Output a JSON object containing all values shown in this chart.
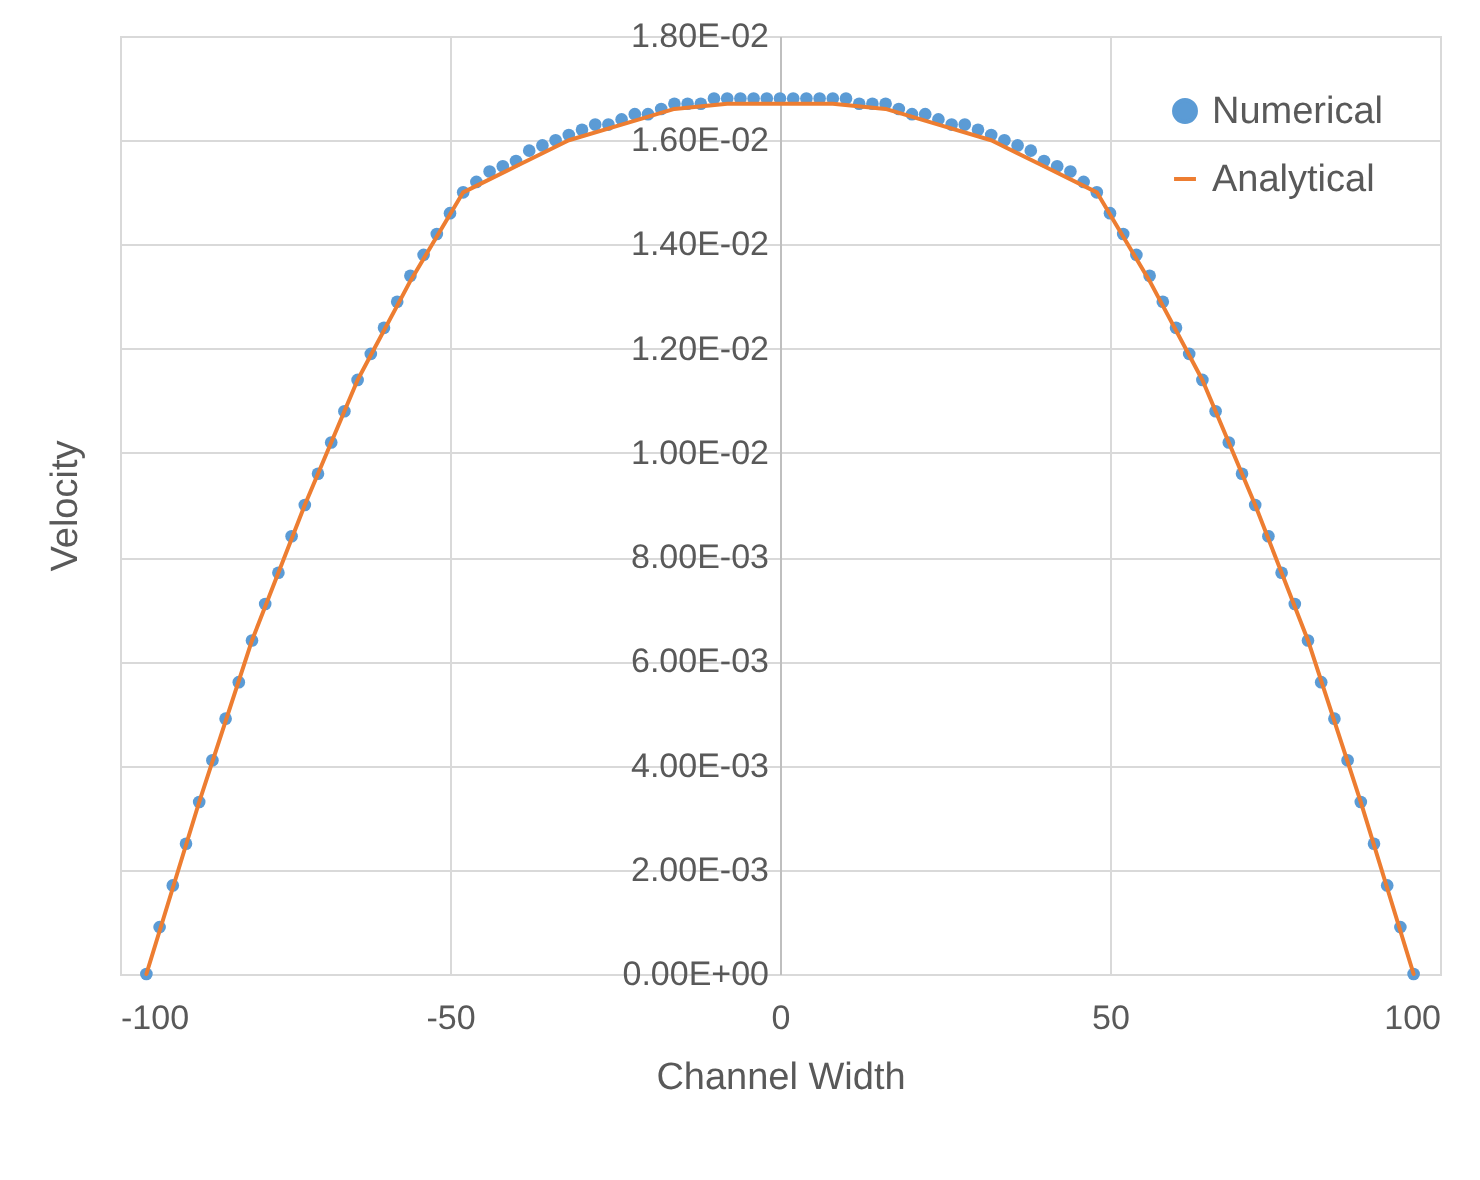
{
  "chart_data": {
    "type": "scatter",
    "xlabel": "Channel Width",
    "ylabel": "Velocity",
    "xlim": [
      -100,
      100
    ],
    "xticks": [
      -100,
      -50,
      0,
      50,
      100
    ],
    "ylim": [
      0,
      0.018
    ],
    "yticks": [
      {
        "value": 0,
        "label": "0.00E+00"
      },
      {
        "value": 0.002,
        "label": "2.00E-03"
      },
      {
        "value": 0.004,
        "label": "4.00E-03"
      },
      {
        "value": 0.006,
        "label": "6.00E-03"
      },
      {
        "value": 0.008,
        "label": "8.00E-03"
      },
      {
        "value": 0.01,
        "label": "1.00E-02"
      },
      {
        "value": 0.012,
        "label": "1.20E-02"
      },
      {
        "value": 0.014,
        "label": "1.40E-02"
      },
      {
        "value": 0.016,
        "label": "1.60E-02"
      },
      {
        "value": 0.018,
        "label": "1.80E-02"
      }
    ],
    "grid": true,
    "legend": "top right",
    "series": [
      {
        "name": "Numerical",
        "marker": "circle",
        "color": "#5b9bd5",
        "x": [
          -96,
          -94,
          -92,
          -90,
          -88,
          -86,
          -84,
          -82,
          -80,
          -78,
          -76,
          -74,
          -72,
          -70,
          -68,
          -66,
          -64,
          -62,
          -60,
          -58,
          -56,
          -54,
          -52,
          -50,
          -48,
          -46,
          -44,
          -42,
          -40,
          -38,
          -36,
          -34,
          -32,
          -30,
          -28,
          -26,
          -24,
          -22,
          -20,
          -18,
          -16,
          -14,
          -12,
          -10,
          -8,
          -6,
          -4,
          -2,
          0,
          2,
          4,
          6,
          8,
          10,
          12,
          14,
          16,
          18,
          20,
          22,
          24,
          26,
          28,
          30,
          32,
          34,
          36,
          38,
          40,
          42,
          44,
          46,
          48,
          50,
          52,
          54,
          56,
          58,
          60,
          62,
          64,
          66,
          68,
          70,
          72,
          74,
          76,
          78,
          80,
          82,
          84,
          86,
          88,
          90,
          92,
          94,
          96
        ],
        "values": [
          0,
          0.0009,
          0.0017,
          0.0025,
          0.0033,
          0.0041,
          0.0049,
          0.0056,
          0.0064,
          0.0071,
          0.0077,
          0.0084,
          0.009,
          0.0096,
          0.0102,
          0.0108,
          0.0114,
          0.0119,
          0.0124,
          0.0129,
          0.0134,
          0.0138,
          0.0142,
          0.0146,
          0.015,
          0.0152,
          0.0154,
          0.0155,
          0.0156,
          0.0158,
          0.0159,
          0.016,
          0.0161,
          0.0162,
          0.0163,
          0.0163,
          0.0164,
          0.0165,
          0.0165,
          0.0166,
          0.0167,
          0.0167,
          0.0167,
          0.0168,
          0.0168,
          0.0168,
          0.0168,
          0.0168,
          0.0168,
          0.0168,
          0.0168,
          0.0168,
          0.0168,
          0.0168,
          0.0167,
          0.0167,
          0.0167,
          0.0166,
          0.0165,
          0.0165,
          0.0164,
          0.0163,
          0.0163,
          0.0162,
          0.0161,
          0.016,
          0.0159,
          0.0158,
          0.0156,
          0.0155,
          0.0154,
          0.0152,
          0.015,
          0.0146,
          0.0142,
          0.0138,
          0.0134,
          0.0129,
          0.0124,
          0.0119,
          0.0114,
          0.0108,
          0.0102,
          0.0096,
          0.009,
          0.0084,
          0.0077,
          0.0071,
          0.0064,
          0.0056,
          0.0049,
          0.0041,
          0.0033,
          0.0025,
          0.0017,
          0.0009,
          0
        ]
      },
      {
        "name": "Analytical",
        "type": "line",
        "color": "#ed7d31",
        "x": [
          -96,
          -88,
          -80,
          -72,
          -64,
          -56,
          -48,
          -40,
          -32,
          -24,
          -16,
          -8,
          0,
          8,
          16,
          24,
          32,
          40,
          48,
          56,
          64,
          72,
          80,
          88,
          96
        ],
        "values": [
          0,
          0.0033,
          0.0064,
          0.009,
          0.0114,
          0.0133,
          0.015,
          0.0155,
          0.016,
          0.0163,
          0.0166,
          0.0167,
          0.0167,
          0.0167,
          0.0166,
          0.0163,
          0.016,
          0.0155,
          0.015,
          0.0133,
          0.0114,
          0.009,
          0.0064,
          0.0033,
          0
        ]
      }
    ]
  }
}
